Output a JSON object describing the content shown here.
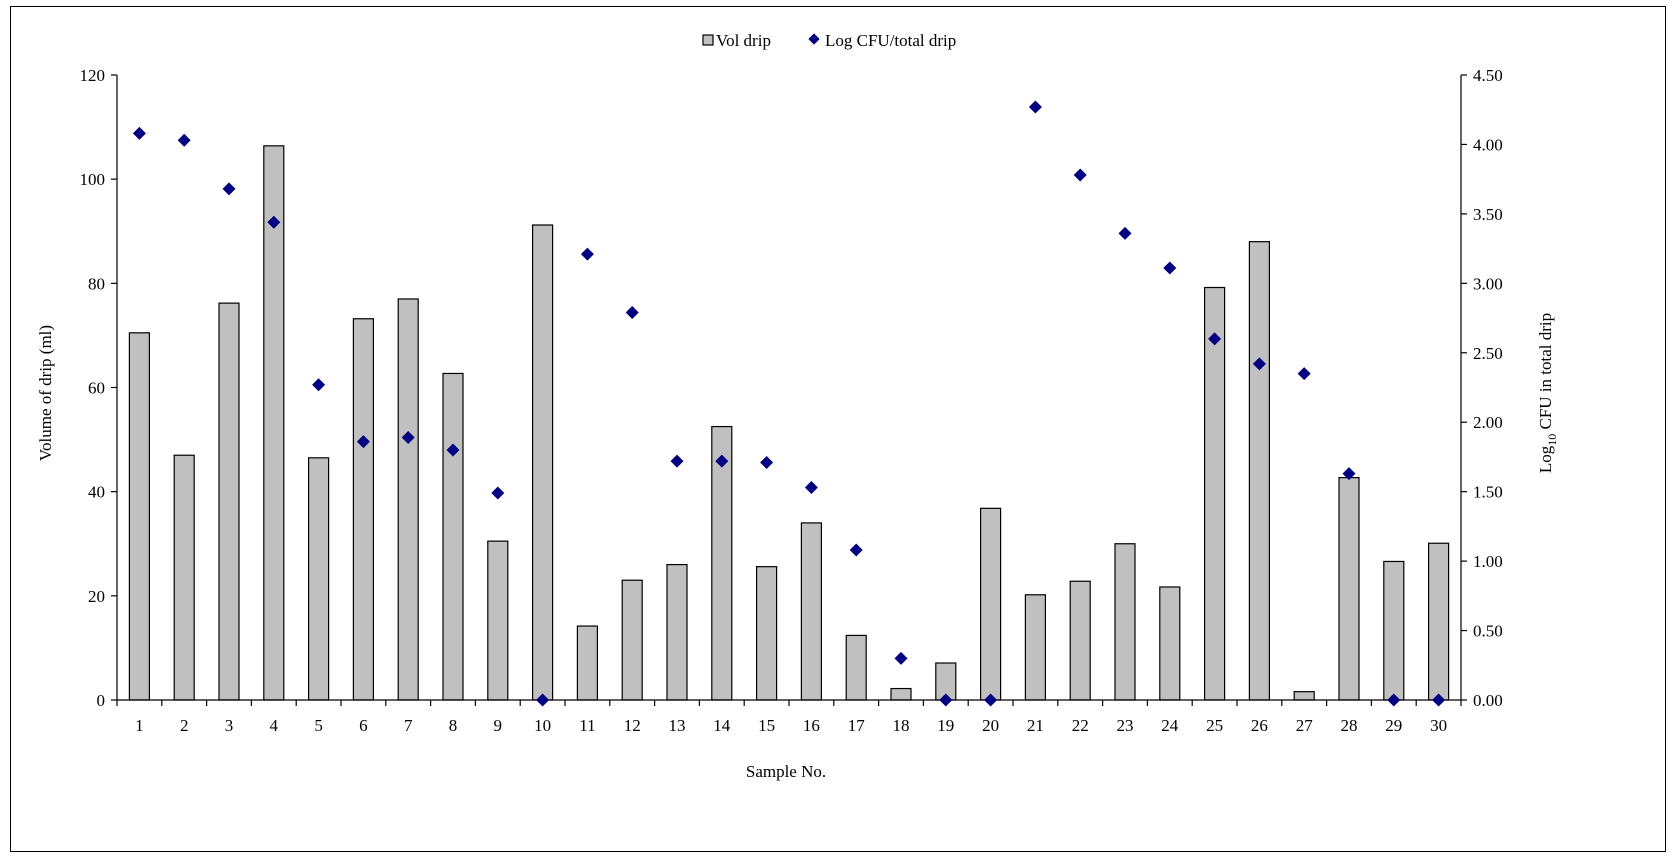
{
  "chart_data": {
    "type": "bar",
    "categories": [
      "1",
      "2",
      "3",
      "4",
      "5",
      "6",
      "7",
      "8",
      "9",
      "10",
      "11",
      "12",
      "13",
      "14",
      "15",
      "16",
      "17",
      "18",
      "19",
      "20",
      "21",
      "22",
      "23",
      "24",
      "25",
      "26",
      "27",
      "28",
      "29",
      "30"
    ],
    "series": [
      {
        "name": "Vol drip",
        "type": "bar",
        "axis": "left",
        "values": [
          70.5,
          47.0,
          76.2,
          106.4,
          46.5,
          73.2,
          77.0,
          62.7,
          30.5,
          91.2,
          14.2,
          23.0,
          26.0,
          52.5,
          25.6,
          34.0,
          12.4,
          2.2,
          7.1,
          36.8,
          20.2,
          22.8,
          30.0,
          21.7,
          79.2,
          88.0,
          1.6,
          42.7,
          26.6,
          30.1
        ]
      },
      {
        "name": "Log CFU/total drip",
        "type": "scatter",
        "axis": "right",
        "values": [
          4.08,
          4.03,
          3.68,
          3.44,
          2.27,
          1.86,
          1.89,
          1.8,
          1.49,
          0.0,
          3.21,
          2.79,
          1.72,
          1.72,
          1.71,
          1.53,
          1.08,
          0.3,
          0.0,
          0.0,
          4.27,
          3.78,
          3.36,
          3.11,
          2.6,
          2.42,
          2.35,
          1.63,
          0.0,
          0.0
        ]
      }
    ],
    "xlabel": "Sample No.",
    "ylabel": "Volume of drip (ml)",
    "y2label_main": "Log",
    "y2label_sub": "10",
    "y2label_rest": " CFU in total drip",
    "ylim": [
      0,
      120
    ],
    "y2lim": [
      0,
      4.5
    ],
    "yticks": [
      "0",
      "20",
      "40",
      "60",
      "80",
      "100",
      "120"
    ],
    "y2ticks": [
      "0.00",
      "0.50",
      "1.00",
      "1.50",
      "2.00",
      "2.50",
      "3.00",
      "3.50",
      "4.00",
      "4.50"
    ],
    "legend_position": "top-center",
    "grid": false,
    "colors": {
      "bar_fill": "#c0c0c0",
      "bar_stroke": "#000000",
      "marker": "#000080"
    }
  }
}
